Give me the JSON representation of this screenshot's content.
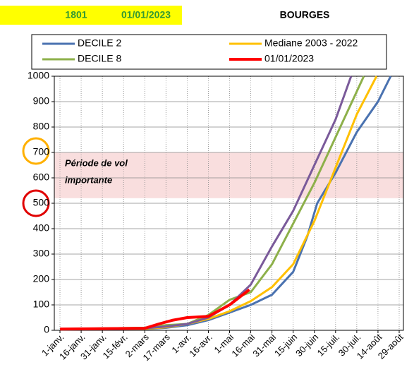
{
  "chart_data": {
    "type": "line",
    "code": "1801",
    "date": "01/01/2023",
    "title": "BOURGES",
    "annotation": [
      "Période de vol",
      "importante"
    ],
    "band": [
      520,
      700
    ],
    "xlim": [
      -4,
      243
    ],
    "ylim": [
      0,
      1000
    ],
    "xticks": [
      {
        "value": 0,
        "label": "1-janv."
      },
      {
        "value": 15,
        "label": "16-janv."
      },
      {
        "value": 30,
        "label": "31-janv."
      },
      {
        "value": 45,
        "label": "15-févr."
      },
      {
        "value": 60,
        "label": "2-mars"
      },
      {
        "value": 75,
        "label": "17-mars"
      },
      {
        "value": 90,
        "label": "1-avr."
      },
      {
        "value": 105,
        "label": "16-avr."
      },
      {
        "value": 120,
        "label": "1-mai"
      },
      {
        "value": 135,
        "label": "16-mai"
      },
      {
        "value": 150,
        "label": "31-mai"
      },
      {
        "value": 165,
        "label": "15-juin"
      },
      {
        "value": 180,
        "label": "30-juin"
      },
      {
        "value": 195,
        "label": "15-juil."
      },
      {
        "value": 210,
        "label": "30-juil."
      },
      {
        "value": 225,
        "label": "14-août"
      },
      {
        "value": 240,
        "label": "29-août"
      }
    ],
    "yticks": [
      0,
      100,
      200,
      300,
      400,
      500,
      600,
      700,
      800,
      900,
      1000
    ],
    "grid": true,
    "series": [
      {
        "name": "DECILE 2",
        "color": "#4a72b0",
        "x": [
          0,
          60,
          75,
          90,
          105,
          120,
          135,
          150,
          165,
          175,
          182,
          195,
          210,
          225,
          234
        ],
        "values": [
          5,
          5,
          10,
          20,
          40,
          70,
          100,
          140,
          230,
          370,
          500,
          620,
          780,
          900,
          1000
        ]
      },
      {
        "name": "Mediane 2003 - 2022",
        "color": "#ffc000",
        "x": [
          0,
          60,
          75,
          90,
          105,
          120,
          135,
          150,
          165,
          180,
          195,
          210,
          224
        ],
        "values": [
          5,
          6,
          12,
          25,
          45,
          75,
          115,
          170,
          260,
          430,
          640,
          850,
          1000
        ]
      },
      {
        "name": "DECILE 8",
        "color": "#8db04a",
        "x": [
          0,
          60,
          75,
          90,
          105,
          120,
          135,
          150,
          165,
          180,
          195,
          210,
          215
        ],
        "values": [
          5,
          10,
          20,
          25,
          60,
          120,
          150,
          260,
          420,
          580,
          760,
          940,
          1000
        ]
      },
      {
        "color": "#7a5a9a",
        "x": [
          0,
          60,
          75,
          90,
          105,
          120,
          135,
          150,
          165,
          180,
          195,
          206
        ],
        "values": [
          5,
          8,
          15,
          25,
          50,
          100,
          180,
          330,
          470,
          650,
          830,
          1000
        ]
      },
      {
        "name": "01/01/2023",
        "color": "#ff0000",
        "x": [
          0,
          60,
          70,
          80,
          90,
          105,
          120,
          134
        ],
        "values": [
          5,
          8,
          25,
          40,
          50,
          55,
          100,
          160
        ]
      }
    ]
  }
}
